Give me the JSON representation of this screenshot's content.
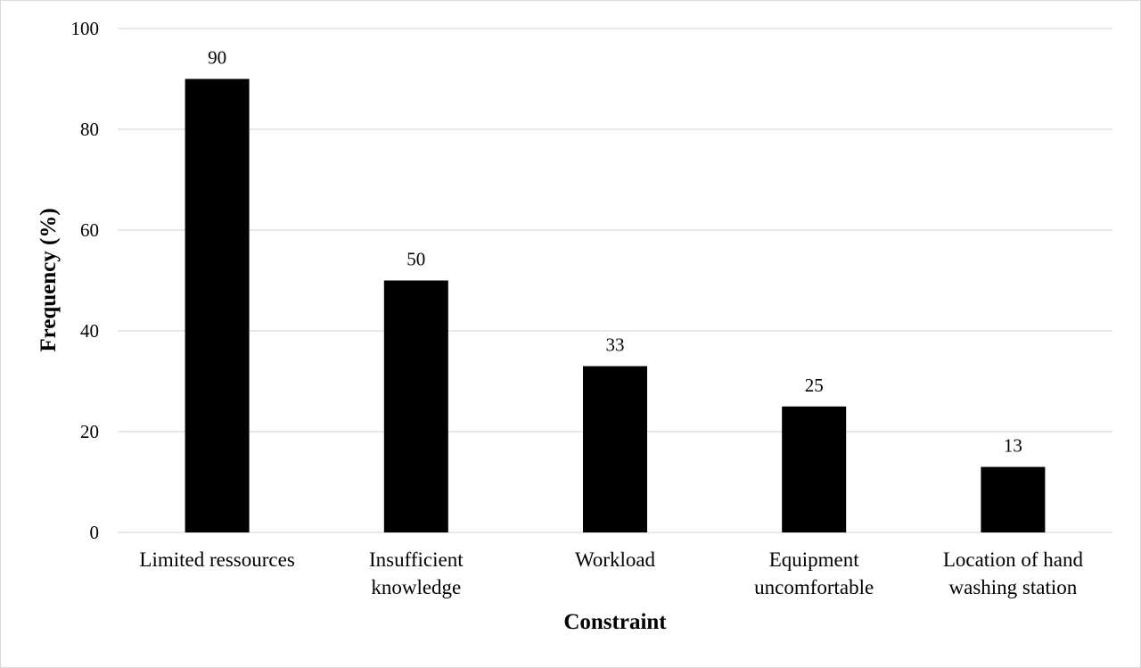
{
  "chart_data": {
    "type": "bar",
    "title": "",
    "xlabel": "Constraint",
    "ylabel": "Frequency (%)",
    "ylim": [
      0,
      100
    ],
    "yticks": [
      0,
      20,
      40,
      60,
      80,
      100
    ],
    "grid": true,
    "legend": "none",
    "bar_color": "#000000",
    "categories": [
      [
        "Limited ressources"
      ],
      [
        "Insufficient",
        "knowledge"
      ],
      [
        "Workload"
      ],
      [
        "Equipment",
        "uncomfortable"
      ],
      [
        "Location of hand",
        "washing station"
      ]
    ],
    "values": [
      90,
      50,
      33,
      25,
      13
    ],
    "data_labels": [
      "90",
      "50",
      "33",
      "25",
      "13"
    ]
  }
}
